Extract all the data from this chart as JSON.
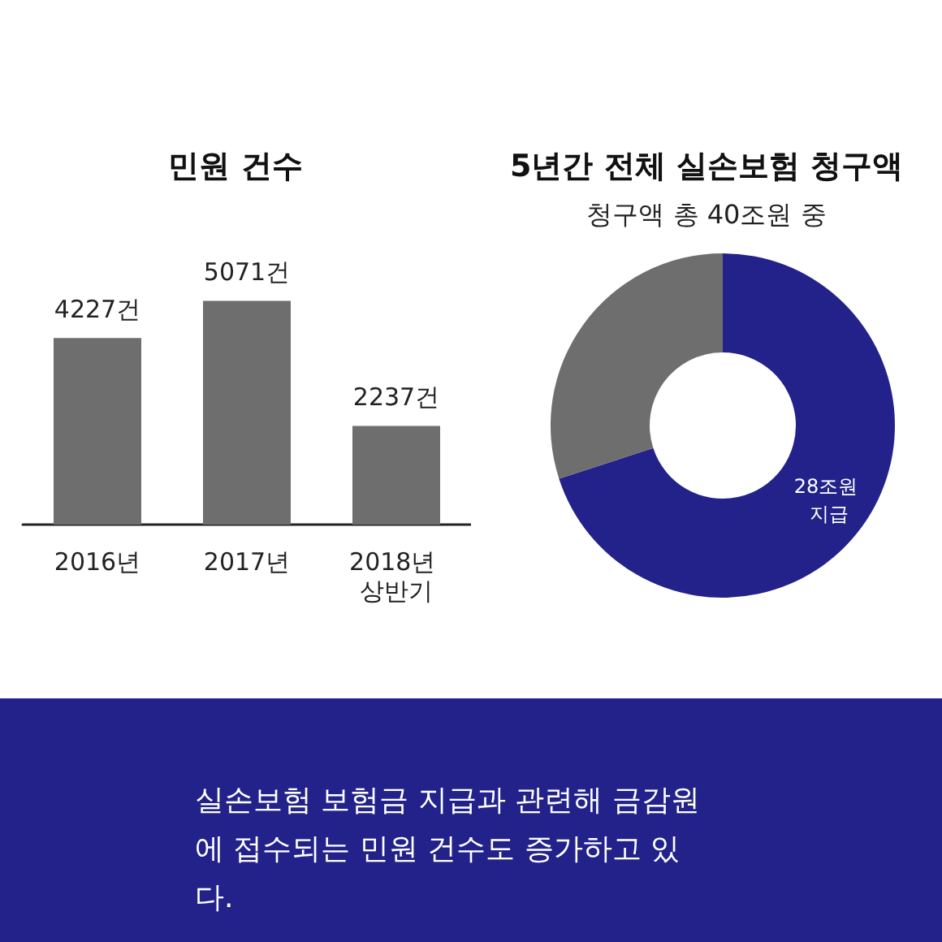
{
  "chart_data": [
    {
      "type": "bar",
      "title": "민원 건수",
      "categories": [
        "2016년",
        "2017년",
        "2018년 상반기"
      ],
      "values": [
        4227,
        5071,
        2237
      ],
      "color": "#6e6e6e",
      "value_labels": [
        "4227건",
        "5071건",
        "2237건"
      ]
    },
    {
      "type": "donut",
      "title": "5년간 전체 실손보험 청구액",
      "subtitle": "청구액 총 40조원 중",
      "categories": [
        null,
        null
      ],
      "values": [
        28,
        12
      ],
      "colors": [
        "#22228a",
        "#6e6e6e"
      ],
      "value_labels": [
        "28조원 지급",
        null
      ]
    },
    {
      "type": "other",
      "annotations": [
        "실손보험 보험금 지급과 관련해 금감원에 접수되는 민원 건수도 증가하고 있다."
      ]
    }
  ]
}
